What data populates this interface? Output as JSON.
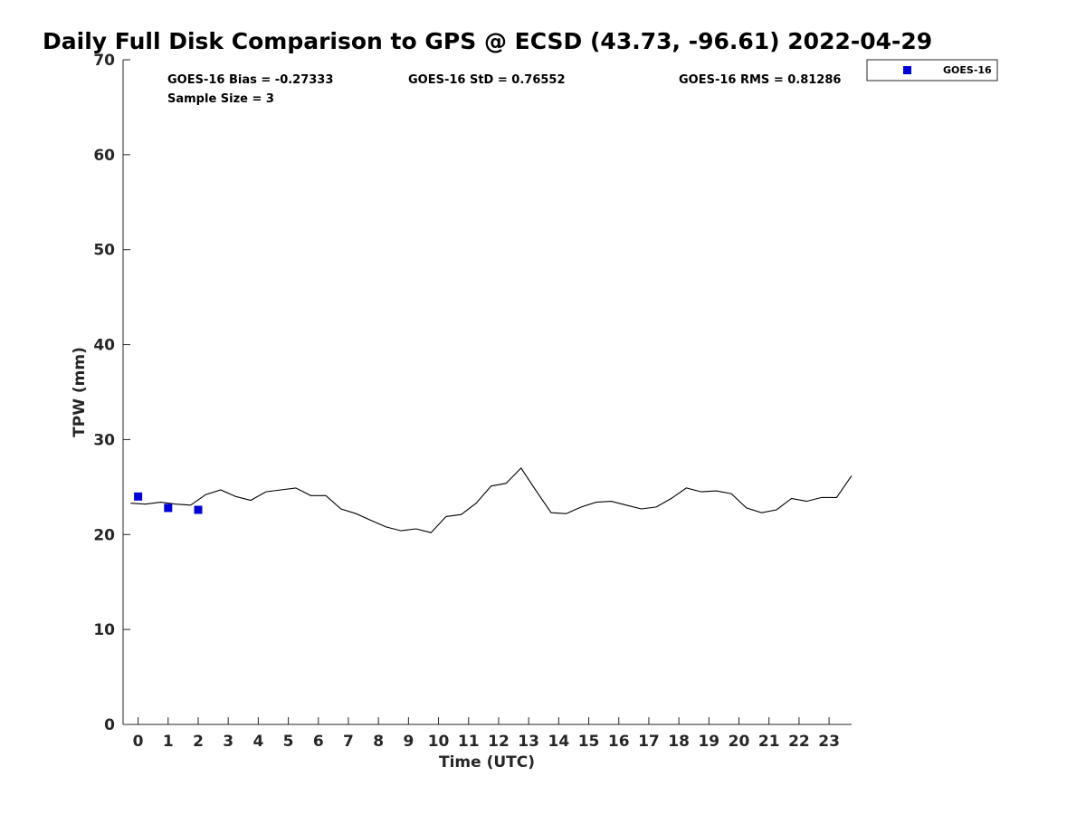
{
  "chart_data": {
    "type": "line",
    "title": "Daily Full Disk Comparison to GPS @ ECSD (43.73, -96.61) 2022-04-29",
    "xlabel": "Time (UTC)",
    "ylabel": "TPW (mm)",
    "xlim": [
      -0.5,
      23.75
    ],
    "ylim": [
      0,
      70
    ],
    "x_ticks": [
      0,
      1,
      2,
      3,
      4,
      5,
      6,
      7,
      8,
      9,
      10,
      11,
      12,
      13,
      14,
      15,
      16,
      17,
      18,
      19,
      20,
      21,
      22,
      23
    ],
    "y_ticks": [
      0,
      10,
      20,
      30,
      40,
      50,
      60,
      70
    ],
    "grid": false,
    "stats": {
      "bias": "GOES-16 Bias = -0.27333",
      "std": "GOES-16 StD = 0.76552",
      "rms": "GOES-16 RMS = 0.81286",
      "sample_size": "Sample Size = 3"
    },
    "legend": {
      "position": "top-right-outside",
      "entries": [
        "GOES-16"
      ]
    },
    "series": [
      {
        "kind": "line",
        "color": "#000000",
        "x": [
          -0.25,
          0.25,
          0.75,
          1.25,
          1.75,
          2.25,
          2.75,
          3.25,
          3.75,
          4.25,
          4.75,
          5.25,
          5.75,
          6.25,
          6.75,
          7.25,
          7.75,
          8.25,
          8.75,
          9.25,
          9.75,
          10.25,
          10.75,
          11.25,
          11.75,
          12.25,
          12.75,
          13.25,
          13.75,
          14.25,
          14.75,
          15.25,
          15.75,
          16.25,
          16.75,
          17.25,
          17.75,
          18.25,
          18.75,
          19.25,
          19.75,
          20.25,
          20.75,
          21.25,
          21.75,
          22.25,
          22.75,
          23.25,
          23.75
        ],
        "values": [
          23.3,
          23.2,
          23.4,
          23.2,
          23.1,
          24.2,
          24.7,
          24.0,
          23.6,
          24.5,
          24.7,
          24.9,
          24.1,
          24.1,
          22.7,
          22.2,
          21.5,
          20.8,
          20.4,
          20.6,
          20.2,
          21.9,
          22.1,
          23.3,
          25.1,
          25.4,
          27.0,
          24.6,
          22.3,
          22.2,
          22.9,
          23.4,
          23.5,
          23.1,
          22.7,
          22.9,
          23.8,
          24.9,
          24.5,
          24.6,
          24.3,
          22.8,
          22.3,
          22.6,
          23.8,
          23.5,
          23.9,
          23.9,
          26.2
        ]
      },
      {
        "name": "GOES-16",
        "kind": "scatter",
        "marker": "square",
        "color": "#0000d6",
        "x": [
          0,
          1,
          2
        ],
        "values": [
          24.0,
          22.8,
          22.6
        ]
      }
    ]
  }
}
